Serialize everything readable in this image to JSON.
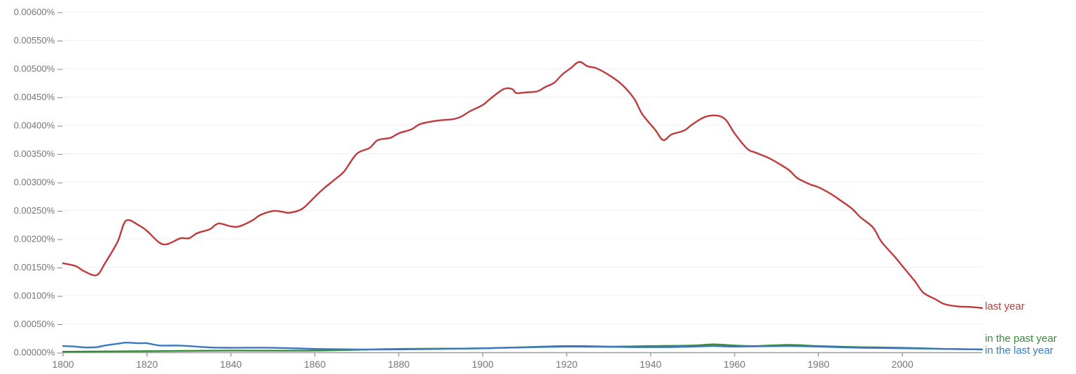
{
  "chart_data": {
    "type": "line",
    "title": "",
    "xlabel": "",
    "ylabel": "",
    "xlim": [
      1800,
      2019
    ],
    "ylim": [
      0,
      0.006
    ],
    "grid": true,
    "legend_position": "inline-right",
    "y_ticks": [
      "0.00000%",
      "0.00050%",
      "0.00100%",
      "0.00150%",
      "0.00200%",
      "0.00250%",
      "0.00300%",
      "0.00350%",
      "0.00400%",
      "0.00450%",
      "0.00500%",
      "0.00550%",
      "0.00600%"
    ],
    "y_tick_values": [
      0,
      0.0005,
      0.001,
      0.0015,
      0.002,
      0.0025,
      0.003,
      0.0035,
      0.004,
      0.0045,
      0.005,
      0.0055,
      0.006
    ],
    "x_ticks": [
      "1800",
      "1820",
      "1840",
      "1860",
      "1880",
      "1900",
      "1920",
      "1940",
      "1960",
      "1980",
      "2000"
    ],
    "x_tick_values": [
      1800,
      1820,
      1840,
      1860,
      1880,
      1900,
      1920,
      1940,
      1960,
      1980,
      2000
    ],
    "series": [
      {
        "name": "last year",
        "color": "#c0393b",
        "x": [
          1800,
          1803,
          1805,
          1808,
          1810,
          1813,
          1815,
          1818,
          1820,
          1823,
          1825,
          1828,
          1830,
          1832,
          1835,
          1837,
          1840,
          1842,
          1845,
          1847,
          1850,
          1852,
          1854,
          1857,
          1860,
          1862,
          1865,
          1867,
          1870,
          1873,
          1875,
          1878,
          1880,
          1883,
          1885,
          1888,
          1890,
          1893,
          1895,
          1897,
          1900,
          1902,
          1905,
          1907,
          1908,
          1910,
          1913,
          1915,
          1917,
          1919,
          1921,
          1923,
          1925,
          1927,
          1930,
          1933,
          1936,
          1938,
          1941,
          1943,
          1945,
          1948,
          1950,
          1953,
          1956,
          1958,
          1960,
          1963,
          1965,
          1968,
          1970,
          1973,
          1975,
          1978,
          1980,
          1983,
          1985,
          1988,
          1990,
          1993,
          1995,
          1998,
          2000,
          2003,
          2005,
          2008,
          2010,
          2013,
          2016,
          2019
        ],
        "values": [
          0.00157,
          0.00152,
          0.00143,
          0.00136,
          0.00157,
          0.00195,
          0.00232,
          0.00224,
          0.00214,
          0.00193,
          0.00191,
          0.00201,
          0.00201,
          0.0021,
          0.00217,
          0.00227,
          0.00222,
          0.00222,
          0.00232,
          0.00242,
          0.00249,
          0.00248,
          0.00246,
          0.00253,
          0.00274,
          0.00288,
          0.00306,
          0.00319,
          0.0035,
          0.0036,
          0.00374,
          0.00378,
          0.00386,
          0.00393,
          0.00402,
          0.00407,
          0.00409,
          0.00411,
          0.00416,
          0.00425,
          0.00436,
          0.00448,
          0.00464,
          0.00464,
          0.00457,
          0.00458,
          0.0046,
          0.00468,
          0.00475,
          0.0049,
          0.00501,
          0.00512,
          0.00504,
          0.00501,
          0.00489,
          0.00473,
          0.00448,
          0.0042,
          0.00393,
          0.00374,
          0.00384,
          0.00391,
          0.00402,
          0.00415,
          0.00417,
          0.00409,
          0.00386,
          0.00359,
          0.00352,
          0.00343,
          0.00335,
          0.00321,
          0.00307,
          0.00296,
          0.00291,
          0.00279,
          0.00269,
          0.00253,
          0.00238,
          0.0022,
          0.00195,
          0.0017,
          0.00152,
          0.00125,
          0.00105,
          0.00093,
          0.00085,
          0.00081,
          0.0008,
          0.00078
        ]
      },
      {
        "name": "in the past year",
        "color": "#3a8a3a",
        "x": [
          1800,
          1820,
          1840,
          1860,
          1880,
          1900,
          1920,
          1930,
          1940,
          1950,
          1955,
          1960,
          1965,
          1973,
          1980,
          1990,
          2000,
          2010,
          2019
        ],
        "values": [
          1e-05,
          2e-05,
          3e-05,
          3e-05,
          6e-05,
          7e-05,
          0.00011,
          0.0001,
          0.00011,
          0.00012,
          0.00014,
          0.00012,
          0.00011,
          0.00013,
          0.00011,
          9e-05,
          8e-05,
          6e-05,
          5e-05
        ]
      },
      {
        "name": "in the last year",
        "color": "#3a78c2",
        "x": [
          1800,
          1803,
          1805,
          1808,
          1810,
          1813,
          1815,
          1818,
          1820,
          1823,
          1827,
          1830,
          1835,
          1840,
          1850,
          1860,
          1870,
          1880,
          1890,
          1900,
          1920,
          1940,
          1950,
          1955,
          1960,
          1973,
          1980,
          1990,
          2000,
          2010,
          2019
        ],
        "values": [
          0.00011,
          0.0001,
          8.6e-05,
          9e-05,
          0.00012,
          0.00015,
          0.00017,
          0.00016,
          0.00016,
          0.00012,
          0.00012,
          0.00011,
          8.6e-05,
          8e-05,
          8e-05,
          6e-05,
          5e-05,
          5e-05,
          6e-05,
          7e-05,
          0.0001,
          9e-05,
          0.0001,
          0.00011,
          0.0001,
          0.00011,
          0.0001,
          8e-05,
          7e-05,
          6e-05,
          5e-05
        ]
      }
    ]
  },
  "labels": {
    "last_year": "last year",
    "in_the_past_year": "in the past year",
    "in_the_last_year": "in the last year"
  }
}
